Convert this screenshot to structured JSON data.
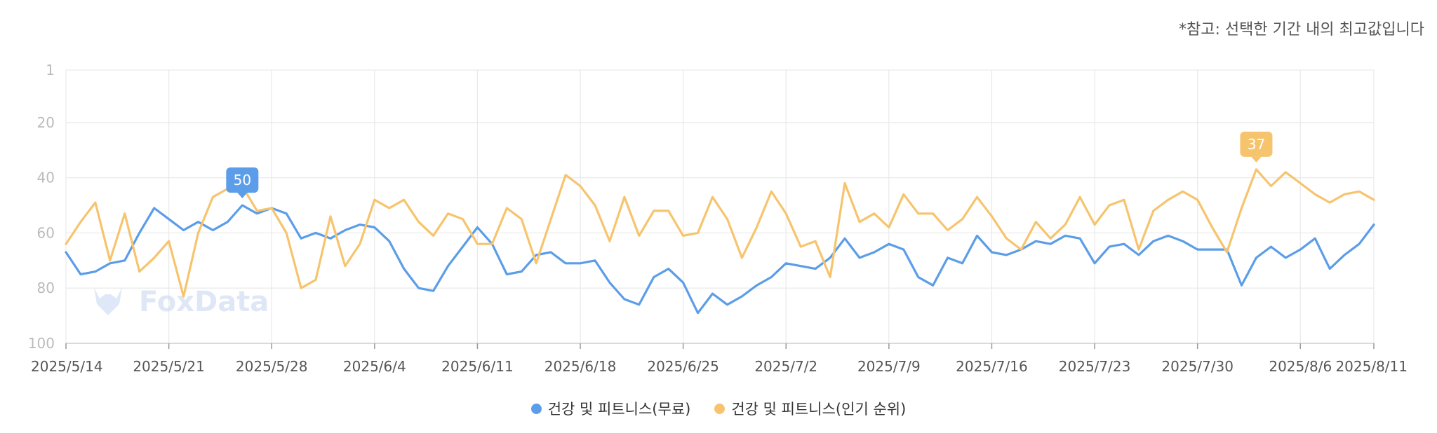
{
  "note": "*참고: 선택한 기간 내의 최고값입니다",
  "watermark": "FoxData",
  "chart_data": {
    "type": "line",
    "y_reversed": true,
    "ylim": [
      1,
      100
    ],
    "yticks": [
      1,
      20,
      40,
      60,
      80,
      100
    ],
    "x_tick_labels": [
      "2025/5/14",
      "2025/5/21",
      "2025/5/28",
      "2025/6/4",
      "2025/6/11",
      "2025/6/18",
      "2025/6/25",
      "2025/7/2",
      "2025/7/9",
      "2025/7/16",
      "2025/7/23",
      "2025/7/30",
      "2025/8/6",
      "2025/8/11"
    ],
    "x_tick_index": [
      0,
      7,
      14,
      21,
      28,
      35,
      42,
      49,
      56,
      63,
      70,
      77,
      84,
      89
    ],
    "grid": true,
    "legend": "bottom-center",
    "series": [
      {
        "name": "건강 및 피트니스(무료)",
        "color": "#5b9de8",
        "values": [
          67,
          75,
          74,
          71,
          70,
          60,
          51,
          55,
          59,
          56,
          59,
          56,
          50,
          53,
          51,
          53,
          62,
          60,
          62,
          59,
          57,
          58,
          63,
          73,
          80,
          81,
          72,
          65,
          58,
          64,
          75,
          74,
          68,
          67,
          71,
          71,
          70,
          78,
          84,
          86,
          76,
          73,
          78,
          89,
          82,
          86,
          83,
          79,
          76,
          71,
          72,
          73,
          69,
          62,
          69,
          67,
          64,
          66,
          76,
          79,
          69,
          71,
          61,
          67,
          68,
          66,
          63,
          64,
          61,
          62,
          71,
          65,
          64,
          68,
          63,
          61,
          63,
          66,
          66,
          66,
          79,
          69,
          65,
          69,
          66,
          62,
          73,
          68,
          64,
          57
        ],
        "peak": {
          "index": 12,
          "value": 50
        }
      },
      {
        "name": "건강 및 피트니스(인기 순위)",
        "color": "#f7c46e",
        "values": [
          64,
          56,
          49,
          70,
          53,
          74,
          69,
          63,
          83,
          60,
          47,
          44,
          43,
          52,
          51,
          60,
          80,
          77,
          54,
          72,
          64,
          48,
          51,
          48,
          56,
          61,
          53,
          55,
          64,
          64,
          51,
          55,
          71,
          55,
          39,
          43,
          50,
          63,
          47,
          61,
          52,
          52,
          61,
          60,
          47,
          55,
          69,
          58,
          45,
          53,
          65,
          63,
          76,
          42,
          56,
          53,
          58,
          46,
          53,
          53,
          59,
          55,
          47,
          54,
          62,
          66,
          56,
          62,
          57,
          47,
          57,
          50,
          48,
          66,
          52,
          48,
          45,
          48,
          58,
          67,
          51,
          37,
          43,
          38,
          42,
          46,
          49,
          46,
          45,
          48
        ],
        "peak": {
          "index": 81,
          "value": 37
        }
      }
    ]
  }
}
